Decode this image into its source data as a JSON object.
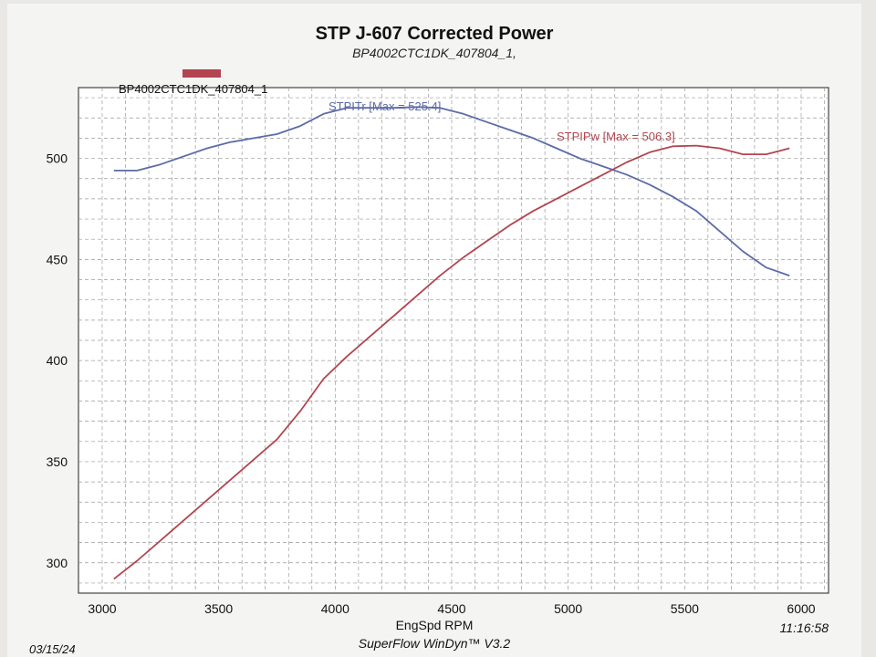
{
  "header": {
    "title": "STP J-607 Corrected Power",
    "subtitle": "BP4002CTC1DK_407804_1,"
  },
  "footer": {
    "date": "03/15/24",
    "time": "11:16:58",
    "software": "SuperFlow WinDyn™ V3.2"
  },
  "colors": {
    "torque": "#5d6aa8",
    "power": "#b2454f",
    "grid": "#9a9a9a",
    "plot_bg": "#ffffff"
  },
  "chart_data": {
    "type": "line",
    "title": "STP J-607 Corrected Power",
    "subtitle": "BP4002CTC1DK_407804_1,",
    "xlabel": "EngSpd RPM",
    "ylabel": "",
    "xlim": [
      3000,
      6000
    ],
    "ylim": [
      285,
      535
    ],
    "x_ticks": [
      3000,
      3500,
      4000,
      4500,
      5000,
      5500,
      6000
    ],
    "y_ticks": [
      300,
      350,
      400,
      450,
      500
    ],
    "grid": true,
    "legend": {
      "placement": "top-left",
      "entries": [
        "BP4002CTC1DK_407804_1"
      ]
    },
    "series": [
      {
        "name": "STPITr",
        "label": "STPITr [Max = 525.4]",
        "color": "#5d6aa8",
        "x": [
          3050,
          3150,
          3250,
          3350,
          3450,
          3550,
          3650,
          3750,
          3850,
          3950,
          4050,
          4150,
          4250,
          4350,
          4450,
          4550,
          4650,
          4750,
          4850,
          4950,
          5050,
          5150,
          5250,
          5350,
          5450,
          5550,
          5650,
          5750,
          5850,
          5950
        ],
        "values": [
          494,
          494,
          497,
          501,
          505,
          508,
          510,
          512,
          516,
          522,
          525,
          525,
          525,
          525.4,
          525,
          522,
          518,
          514,
          510,
          505,
          500,
          496,
          492,
          487,
          481,
          474,
          464,
          454,
          446,
          442
        ]
      },
      {
        "name": "STPIPw",
        "label": "STPIPw [Max = 506.3]",
        "color": "#b2454f",
        "x": [
          3050,
          3150,
          3250,
          3350,
          3450,
          3550,
          3650,
          3750,
          3850,
          3950,
          4050,
          4150,
          4250,
          4350,
          4450,
          4550,
          4650,
          4750,
          4850,
          4950,
          5050,
          5150,
          5250,
          5350,
          5450,
          5550,
          5650,
          5750,
          5850,
          5950
        ],
        "values": [
          292,
          301,
          311,
          321,
          331,
          341,
          351,
          361,
          375,
          391,
          402,
          412,
          422,
          432,
          442,
          451,
          459,
          467,
          474,
          480,
          486,
          492,
          498,
          503,
          506,
          506.3,
          505,
          502,
          502,
          505
        ]
      }
    ]
  }
}
